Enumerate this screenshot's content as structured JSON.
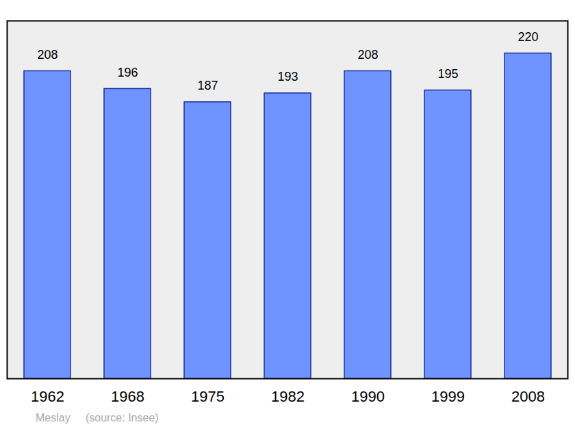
{
  "chart_data": {
    "type": "bar",
    "caption": "Meslay     (source: Insee)",
    "categories": [
      "1962",
      "1968",
      "1975",
      "1982",
      "1990",
      "1999",
      "2008"
    ],
    "values": [
      208,
      196,
      187,
      193,
      208,
      195,
      220
    ],
    "color": "#7094ff",
    "ylim": [
      0,
      242
    ],
    "yticks": [],
    "grid": false,
    "data_labels": true,
    "tick_labels": "x"
  }
}
